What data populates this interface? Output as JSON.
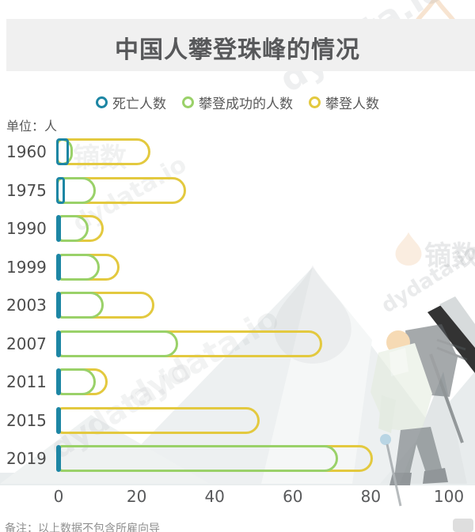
{
  "title": "中国人攀登珠峰的情况",
  "unit_label": "单位：人",
  "footnote": "备注：以上数据不包含所雇向导",
  "watermark": {
    "brand": "dydata.io",
    "brand_cn": "镝数"
  },
  "legend": [
    {
      "label": "死亡人数",
      "color": "#1d86a4"
    },
    {
      "label": "攀登成功的人数",
      "color": "#9ad169"
    },
    {
      "label": "攀登人数",
      "color": "#e3c93f"
    }
  ],
  "chart_data": {
    "type": "bar",
    "orientation": "horizontal",
    "title": "中国人攀登珠峰的情况",
    "unit": "人",
    "categories": [
      "1960",
      "1975",
      "1990",
      "1999",
      "2003",
      "2007",
      "2011",
      "2015",
      "2019"
    ],
    "series": [
      {
        "name": "死亡人数",
        "color": "#1d86a4",
        "values": [
          2,
          1,
          0,
          0,
          0,
          0,
          0,
          0,
          0
        ]
      },
      {
        "name": "攀登成功的人数",
        "color": "#9ad169",
        "values": [
          3,
          9,
          7,
          10,
          11,
          30,
          9,
          0,
          71
        ]
      },
      {
        "name": "攀登人数",
        "color": "#e3c93f",
        "values": [
          23,
          32,
          11,
          15,
          24,
          67,
          12,
          51,
          80
        ]
      }
    ],
    "x_ticks": [
      0,
      20,
      40,
      60,
      80,
      100
    ],
    "xlim": [
      0,
      100
    ],
    "grid": false,
    "legend_position": "top",
    "bar_style": "outlined-rounded"
  }
}
